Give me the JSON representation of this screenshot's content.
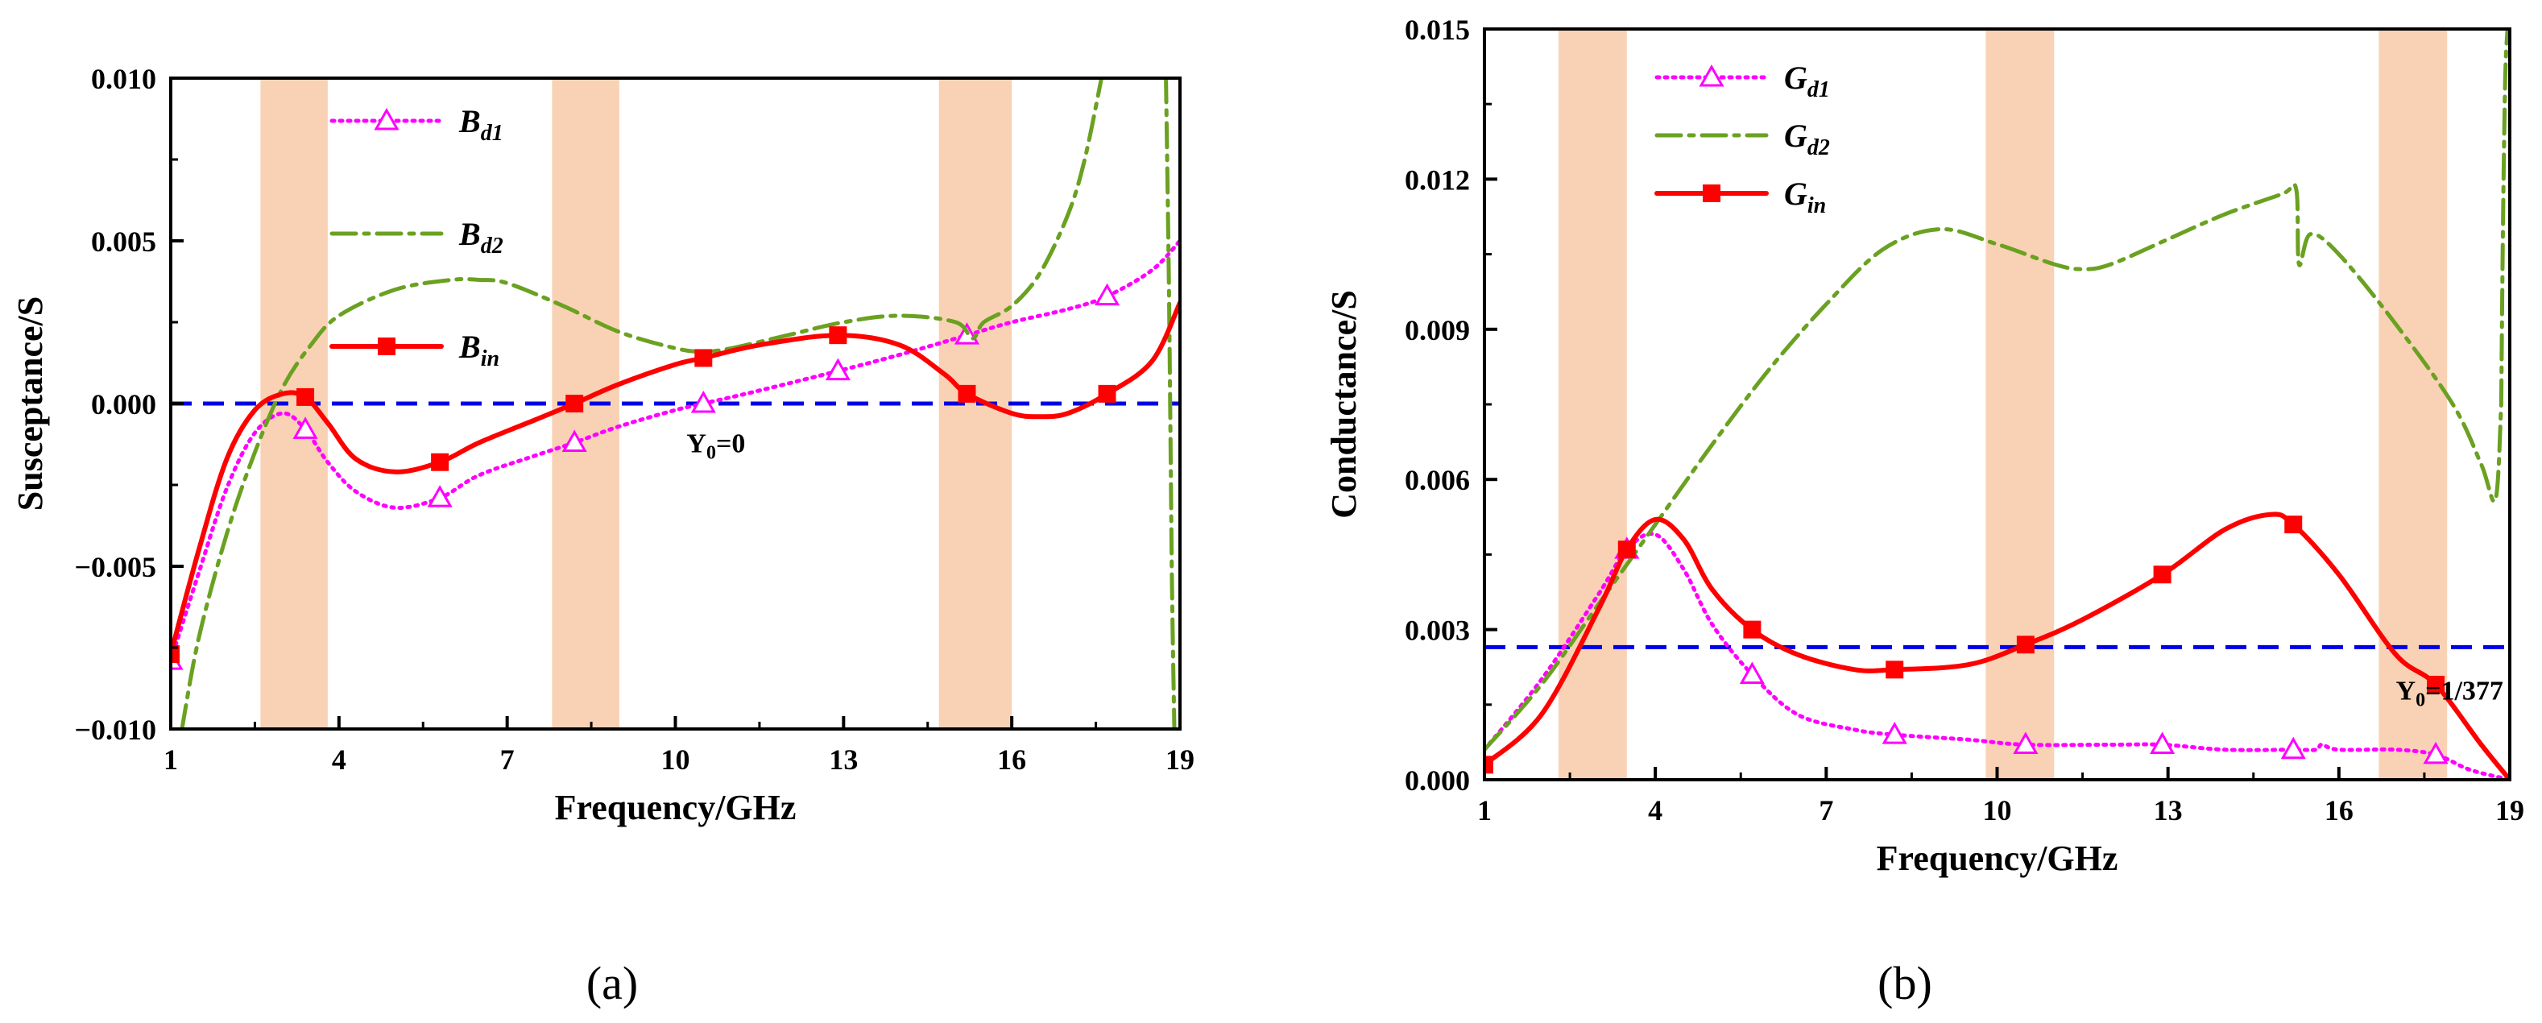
{
  "chart_data": [
    {
      "type": "line",
      "caption": "(a)",
      "xlabel": "Frequency/GHz",
      "ylabel": "Susceptance/S",
      "xlim": [
        1,
        19
      ],
      "ylim": [
        -0.01,
        0.01
      ],
      "xticks": [
        1,
        4,
        7,
        10,
        13,
        16,
        19
      ],
      "yticks": [
        -0.01,
        -0.005,
        0.0,
        0.005,
        0.01
      ],
      "ytick_labels": [
        "−0.010",
        "−0.005",
        "0.000",
        "0.005",
        "0.010"
      ],
      "xtick_labels": [
        "1",
        "4",
        "7",
        "10",
        "13",
        "16",
        "19"
      ],
      "shaded_bands": [
        [
          2.6,
          3.8
        ],
        [
          7.8,
          9.0
        ],
        [
          14.7,
          16.0
        ]
      ],
      "reference_line": {
        "y": 0.0,
        "label": "Y",
        "label_sub": "0",
        "label_suffix": "=0",
        "label_at": [
          10.2,
          -0.0015
        ]
      },
      "legend": {
        "placement": "top-left"
      },
      "series": [
        {
          "name": "B",
          "name_sub": "d1",
          "color": "#ff00ff",
          "style": "dotted",
          "marker": "open-triangle",
          "x": [
            1,
            1.5,
            2,
            2.5,
            3,
            3.4,
            3.8,
            4.3,
            5,
            5.8,
            6.5,
            7.5,
            8.2,
            9,
            10,
            10.5,
            11.5,
            12.9,
            14,
            15.2,
            16,
            17,
            17.7,
            18.5,
            19
          ],
          "y": [
            -0.0079,
            -0.0052,
            -0.0026,
            -0.0009,
            -0.0003,
            -0.0008,
            -0.0018,
            -0.0027,
            -0.0032,
            -0.0029,
            -0.0022,
            -0.0016,
            -0.0012,
            -0.0007,
            -0.0002,
            0.0,
            0.0004,
            0.001,
            0.0015,
            0.0021,
            0.0025,
            0.0029,
            0.0033,
            0.0041,
            0.005
          ],
          "marker_x": [
            1,
            3.4,
            5.8,
            8.2,
            10.5,
            12.9,
            15.2,
            17.7
          ]
        },
        {
          "name": "B",
          "name_sub": "d2",
          "color": "#6aa121",
          "style": "dashdot",
          "marker": "none",
          "x": [
            1.2,
            1.5,
            2,
            2.5,
            3,
            3.5,
            4,
            5,
            6,
            6.5,
            7,
            8,
            9,
            10,
            10.5,
            11,
            12,
            13,
            14,
            15,
            15.3,
            15.5,
            16,
            16.5,
            17,
            17.3,
            17.6
          ],
          "y": [
            -0.01,
            -0.0072,
            -0.004,
            -0.0015,
            0.0005,
            0.0018,
            0.0027,
            0.0035,
            0.0038,
            0.0038,
            0.0037,
            0.003,
            0.0022,
            0.0017,
            0.0016,
            0.0017,
            0.0021,
            0.0025,
            0.0027,
            0.0025,
            0.002,
            0.0025,
            0.003,
            0.004,
            0.0058,
            0.0075,
            0.01
          ],
          "x2": [
            18.75,
            18.8,
            18.83,
            18.86,
            18.9
          ],
          "y2": [
            0.01,
            0.004,
            -0.001,
            -0.006,
            -0.01
          ]
        },
        {
          "name": "B",
          "name_sub": "in",
          "color": "#ff0000",
          "style": "solid",
          "marker": "filled-square",
          "x": [
            1,
            1.5,
            2,
            2.5,
            3,
            3.4,
            3.8,
            4.3,
            5,
            5.8,
            6.5,
            7.5,
            8.2,
            9,
            10,
            10.5,
            11.5,
            12.9,
            14,
            14.8,
            15.2,
            16,
            16.5,
            17,
            17.7,
            18.5,
            19
          ],
          "y": [
            -0.0077,
            -0.0045,
            -0.0017,
            -0.0002,
            0.0003,
            0.0002,
            -0.0006,
            -0.0017,
            -0.0021,
            -0.0018,
            -0.0012,
            -0.0005,
            0.0,
            0.0006,
            0.0012,
            0.0014,
            0.0018,
            0.0021,
            0.0018,
            0.0009,
            0.0003,
            -0.0003,
            -0.0004,
            -0.0003,
            0.0003,
            0.0013,
            0.0031
          ],
          "marker_x": [
            1,
            3.4,
            5.8,
            8.2,
            10.5,
            12.9,
            15.2,
            17.7
          ]
        }
      ]
    },
    {
      "type": "line",
      "caption": "(b)",
      "xlabel": "Frequency/GHz",
      "ylabel": "Conductance/S",
      "xlim": [
        1,
        19
      ],
      "ylim": [
        0,
        0.015
      ],
      "xticks": [
        1,
        4,
        7,
        10,
        13,
        16,
        19
      ],
      "yticks": [
        0,
        0.003,
        0.006,
        0.009,
        0.012,
        0.015
      ],
      "ytick_labels": [
        "0.000",
        "0.003",
        "0.006",
        "0.009",
        "0.012",
        "0.015"
      ],
      "xtick_labels": [
        "1",
        "4",
        "7",
        "10",
        "13",
        "16",
        "19"
      ],
      "shaded_bands": [
        [
          2.3,
          3.5
        ],
        [
          9.8,
          11.0
        ],
        [
          16.7,
          17.9
        ]
      ],
      "reference_line": {
        "y": 0.00265,
        "label": "Y",
        "label_sub": "0",
        "label_suffix": "=1/377",
        "label_at": [
          17.0,
          0.0016
        ]
      },
      "legend": {
        "placement": "top-left"
      },
      "series": [
        {
          "name": "G",
          "name_sub": "d1",
          "color": "#ff00ff",
          "style": "dotted",
          "marker": "open-triangle",
          "x": [
            1,
            2,
            3,
            3.5,
            4,
            4.5,
            5,
            5.7,
            6.5,
            7.5,
            8.2,
            9.5,
            10.5,
            12,
            12.9,
            14,
            15.2,
            15.6,
            15.7,
            16,
            17,
            17.7,
            18.3,
            19
          ],
          "y": [
            0.0006,
            0.002,
            0.0037,
            0.0046,
            0.0049,
            0.0042,
            0.0031,
            0.0021,
            0.0013,
            0.001,
            0.0009,
            0.0008,
            0.0007,
            0.0007,
            0.0007,
            0.0006,
            0.0006,
            0.0006,
            0.0007,
            0.0006,
            0.0006,
            0.0005,
            0.0002,
            0.0
          ],
          "marker_x": [
            3.5,
            5.7,
            8.2,
            10.5,
            12.9,
            15.2,
            17.7
          ]
        },
        {
          "name": "G",
          "name_sub": "d2",
          "color": "#6aa121",
          "style": "dashdot",
          "marker": "none",
          "x": [
            1,
            2,
            3,
            4,
            5,
            6,
            7,
            8,
            9,
            10,
            11,
            11.5,
            12,
            13,
            14,
            15,
            15.25,
            15.3,
            15.5,
            16,
            17,
            18,
            18.5,
            18.75,
            18.85
          ],
          "y": [
            0.0006,
            0.0019,
            0.0035,
            0.0051,
            0.0067,
            0.0082,
            0.0095,
            0.0106,
            0.011,
            0.0107,
            0.0103,
            0.0102,
            0.0103,
            0.0108,
            0.0113,
            0.0117,
            0.0118,
            0.0103,
            0.0109,
            0.0105,
            0.0091,
            0.0075,
            0.0063,
            0.0056,
            0.0075
          ],
          "x2": [
            18.85,
            18.88,
            18.92,
            18.96
          ],
          "y2": [
            0.0075,
            0.011,
            0.014,
            0.015
          ]
        },
        {
          "name": "G",
          "name_sub": "in",
          "color": "#ff0000",
          "style": "solid",
          "marker": "filled-square",
          "x": [
            1,
            2,
            3,
            3.5,
            4,
            4.5,
            5,
            5.7,
            6.5,
            7.5,
            8.2,
            9.5,
            10.5,
            11.5,
            12.9,
            14,
            14.8,
            15.2,
            16,
            17,
            17.7,
            18.5,
            19
          ],
          "y": [
            0.0003,
            0.0013,
            0.0034,
            0.0046,
            0.0052,
            0.0048,
            0.0038,
            0.003,
            0.0025,
            0.0022,
            0.0022,
            0.0023,
            0.0027,
            0.0032,
            0.0041,
            0.005,
            0.0053,
            0.0051,
            0.0041,
            0.0025,
            0.0019,
            0.0007,
            0.0
          ],
          "marker_x": [
            1,
            3.5,
            5.7,
            8.2,
            10.5,
            12.9,
            15.2,
            17.7
          ]
        }
      ]
    }
  ]
}
